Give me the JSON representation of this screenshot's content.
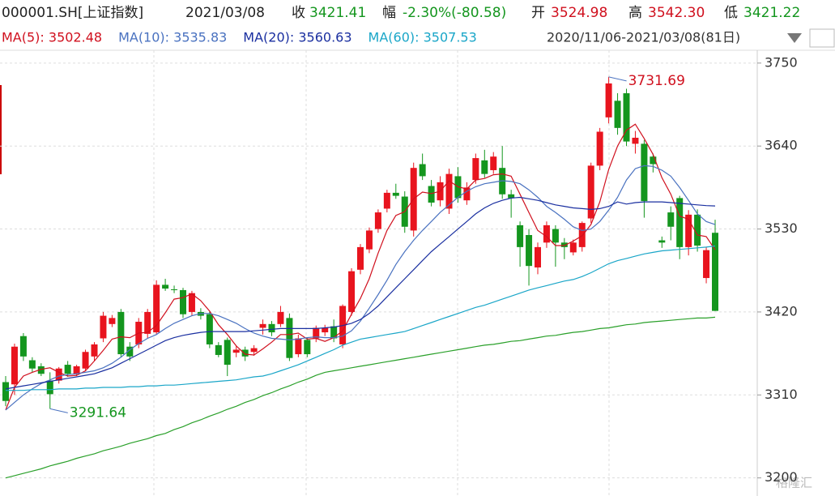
{
  "header": {
    "symbol": "000001.SH[上证指数]",
    "date": "2021/03/08",
    "close_label": "收",
    "close": "3421.41",
    "change_label": "幅",
    "change": "-2.30%(-80.58)",
    "open_label": "开",
    "open": "3524.98",
    "high_label": "高",
    "high": "3542.30",
    "low_label": "低",
    "low": "3421.22",
    "range": "2020/11/06-2021/03/08(81日)",
    "watermark": "格隆汇"
  },
  "chart_data": {
    "type": "candlestick",
    "up_color": "#e8141e",
    "down_color": "#14961e",
    "ylim": [
      3176,
      3767
    ],
    "yticks": [
      3750,
      3640,
      3530,
      3420,
      3310,
      3200
    ],
    "grid": true,
    "annotations": [
      3731.69,
      3291.64
    ],
    "ohlc": [
      [
        3327,
        3335,
        3295,
        3302
      ],
      [
        3324,
        3378,
        3310,
        3374
      ],
      [
        3388,
        3392,
        3355,
        3361
      ],
      [
        3356,
        3360,
        3340,
        3345
      ],
      [
        3348,
        3352,
        3335,
        3338
      ],
      [
        3329,
        3340,
        3291.64,
        3311
      ],
      [
        3329,
        3347,
        3325,
        3345
      ],
      [
        3350,
        3355,
        3334,
        3338
      ],
      [
        3338,
        3350,
        3335,
        3348
      ],
      [
        3345,
        3370,
        3342,
        3367
      ],
      [
        3361,
        3380,
        3355,
        3377
      ],
      [
        3385,
        3420,
        3380,
        3415
      ],
      [
        3404,
        3416,
        3400,
        3412
      ],
      [
        3420,
        3424,
        3360,
        3364
      ],
      [
        3374,
        3380,
        3355,
        3361
      ],
      [
        3377,
        3412,
        3372,
        3407
      ],
      [
        3391,
        3424,
        3385,
        3420
      ],
      [
        3393,
        3462,
        3390,
        3456
      ],
      [
        3456,
        3464,
        3448,
        3451
      ],
      [
        3450,
        3455,
        3445,
        3449
      ],
      [
        3449,
        3452,
        3412,
        3417
      ],
      [
        3420,
        3448,
        3415,
        3445
      ],
      [
        3420,
        3425,
        3410,
        3415
      ],
      [
        3417,
        3420,
        3372,
        3377
      ],
      [
        3376,
        3380,
        3360,
        3363
      ],
      [
        3383,
        3386,
        3335,
        3350
      ],
      [
        3366,
        3375,
        3360,
        3370
      ],
      [
        3370,
        3374,
        3355,
        3361
      ],
      [
        3367,
        3376,
        3362,
        3372
      ],
      [
        3399,
        3410,
        3390,
        3404
      ],
      [
        3404,
        3408,
        3388,
        3393
      ],
      [
        3404,
        3428,
        3400,
        3420
      ],
      [
        3412,
        3418,
        3355,
        3359
      ],
      [
        3364,
        3390,
        3360,
        3385
      ],
      [
        3383,
        3386,
        3360,
        3364
      ],
      [
        3385,
        3402,
        3380,
        3399
      ],
      [
        3393,
        3403,
        3388,
        3399
      ],
      [
        3401,
        3410,
        3380,
        3385
      ],
      [
        3377,
        3430,
        3372,
        3428
      ],
      [
        3420,
        3478,
        3415,
        3474
      ],
      [
        3476,
        3510,
        3470,
        3506
      ],
      [
        3503,
        3532,
        3498,
        3528
      ],
      [
        3530,
        3556,
        3525,
        3552
      ],
      [
        3557,
        3582,
        3552,
        3578
      ],
      [
        3578,
        3590,
        3570,
        3574
      ],
      [
        3573,
        3580,
        3525,
        3533
      ],
      [
        3528,
        3618,
        3520,
        3611
      ],
      [
        3616,
        3630,
        3595,
        3600
      ],
      [
        3587,
        3595,
        3560,
        3565
      ],
      [
        3568,
        3600,
        3560,
        3592
      ],
      [
        3557,
        3610,
        3550,
        3603
      ],
      [
        3600,
        3612,
        3565,
        3571
      ],
      [
        3568,
        3592,
        3562,
        3585
      ],
      [
        3595,
        3630,
        3590,
        3624
      ],
      [
        3621,
        3635,
        3598,
        3603
      ],
      [
        3608,
        3632,
        3603,
        3626
      ],
      [
        3611,
        3640,
        3570,
        3576
      ],
      [
        3576,
        3582,
        3545,
        3571
      ],
      [
        3535,
        3540,
        3480,
        3506
      ],
      [
        3522,
        3530,
        3455,
        3481
      ],
      [
        3479,
        3512,
        3470,
        3506
      ],
      [
        3512,
        3540,
        3505,
        3535
      ],
      [
        3530,
        3535,
        3480,
        3512
      ],
      [
        3512,
        3518,
        3490,
        3506
      ],
      [
        3499,
        3516,
        3495,
        3512
      ],
      [
        3506,
        3540,
        3500,
        3538
      ],
      [
        3544,
        3618,
        3538,
        3614
      ],
      [
        3614,
        3664,
        3608,
        3659
      ],
      [
        3678,
        3731.69,
        3670,
        3723
      ],
      [
        3700,
        3710,
        3655,
        3664
      ],
      [
        3710,
        3716,
        3640,
        3646
      ],
      [
        3643,
        3660,
        3630,
        3651
      ],
      [
        3643,
        3648,
        3545,
        3567
      ],
      [
        3626,
        3630,
        3605,
        3616
      ],
      [
        3515,
        3520,
        3505,
        3512
      ],
      [
        3552,
        3560,
        3515,
        3533
      ],
      [
        3571,
        3574,
        3490,
        3506
      ],
      [
        3506,
        3555,
        3495,
        3549
      ],
      [
        3549,
        3556,
        3500,
        3508
      ],
      [
        3465,
        3506,
        3458,
        3501.99
      ],
      [
        3524.98,
        3542.3,
        3421.22,
        3421.41
      ]
    ],
    "series": [
      {
        "name": "MA(5): 3502.48",
        "color": "#d0101e",
        "values": [
          3290,
          3320,
          3335,
          3340,
          3344,
          3346,
          3340,
          3335,
          3336,
          3342,
          3355,
          3369,
          3384,
          3387,
          3386,
          3392,
          3393,
          3402,
          3419,
          3437,
          3439,
          3444,
          3435,
          3421,
          3403,
          3390,
          3375,
          3364,
          3363,
          3371,
          3380,
          3390,
          3390,
          3392,
          3384,
          3385,
          3381,
          3386,
          3395,
          3417,
          3438,
          3464,
          3498,
          3528,
          3548,
          3553,
          3570,
          3579,
          3577,
          3580,
          3594,
          3586,
          3583,
          3595,
          3597,
          3602,
          3603,
          3600,
          3576,
          3552,
          3528,
          3520,
          3508,
          3508,
          3514,
          3521,
          3536,
          3566,
          3609,
          3640,
          3661,
          3669,
          3650,
          3629,
          3598,
          3576,
          3547,
          3543,
          3522,
          3520,
          3502.48
        ]
      },
      {
        "name": "MA(10): 3535.83",
        "color": "#4a72c0",
        "values": [
          3290,
          3300,
          3310,
          3318,
          3325,
          3330,
          3335,
          3337,
          3338,
          3340,
          3342,
          3346,
          3352,
          3360,
          3370,
          3378,
          3385,
          3390,
          3398,
          3405,
          3410,
          3415,
          3418,
          3418,
          3415,
          3410,
          3405,
          3398,
          3392,
          3388,
          3385,
          3384,
          3383,
          3384,
          3386,
          3387,
          3386,
          3386,
          3388,
          3395,
          3408,
          3425,
          3443,
          3462,
          3483,
          3500,
          3515,
          3528,
          3540,
          3552,
          3562,
          3572,
          3580,
          3586,
          3590,
          3592,
          3594,
          3593,
          3590,
          3582,
          3572,
          3560,
          3552,
          3543,
          3533,
          3528,
          3530,
          3540,
          3555,
          3572,
          3595,
          3610,
          3614,
          3613,
          3608,
          3600,
          3585,
          3568,
          3550,
          3540,
          3535.83
        ]
      },
      {
        "name": "MA(20): 3560.63",
        "color": "#1a2fa0",
        "values": [
          3318,
          3320,
          3322,
          3324,
          3326,
          3328,
          3330,
          3332,
          3334,
          3336,
          3338,
          3342,
          3346,
          3352,
          3358,
          3364,
          3370,
          3376,
          3382,
          3386,
          3389,
          3391,
          3393,
          3394,
          3394,
          3394,
          3394,
          3394,
          3395,
          3396,
          3397,
          3398,
          3398,
          3398,
          3398,
          3398,
          3399,
          3400,
          3402,
          3405,
          3410,
          3418,
          3428,
          3440,
          3452,
          3464,
          3476,
          3488,
          3500,
          3510,
          3520,
          3530,
          3540,
          3550,
          3558,
          3564,
          3568,
          3571,
          3572,
          3570,
          3568,
          3565,
          3562,
          3560,
          3558,
          3557,
          3556,
          3557,
          3560,
          3566,
          3563,
          3565,
          3566,
          3566,
          3566,
          3565,
          3564,
          3563,
          3562,
          3561,
          3560.63
        ]
      },
      {
        "name": "MA(60): 3507.53",
        "color": "#1aa6c8",
        "values": [
          3316,
          3316,
          3316,
          3317,
          3317,
          3317,
          3318,
          3318,
          3318,
          3319,
          3319,
          3320,
          3320,
          3320,
          3321,
          3321,
          3322,
          3322,
          3323,
          3323,
          3324,
          3325,
          3326,
          3327,
          3328,
          3329,
          3330,
          3332,
          3334,
          3335,
          3338,
          3342,
          3346,
          3350,
          3355,
          3360,
          3365,
          3370,
          3376,
          3380,
          3384,
          3386,
          3388,
          3390,
          3392,
          3394,
          3398,
          3402,
          3406,
          3410,
          3414,
          3418,
          3422,
          3426,
          3429,
          3433,
          3437,
          3441,
          3445,
          3449,
          3452,
          3455,
          3458,
          3461,
          3463,
          3467,
          3472,
          3478,
          3484,
          3488,
          3491,
          3494,
          3497,
          3499,
          3501,
          3502,
          3503,
          3504,
          3505,
          3506,
          3507.53
        ]
      },
      {
        "color": "#2aa02a",
        "values": [
          3200,
          3203,
          3206,
          3209,
          3212,
          3216,
          3219,
          3222,
          3226,
          3229,
          3232,
          3236,
          3239,
          3242,
          3246,
          3249,
          3252,
          3256,
          3259,
          3264,
          3268,
          3273,
          3277,
          3282,
          3286,
          3291,
          3295,
          3300,
          3304,
          3309,
          3313,
          3318,
          3322,
          3327,
          3331,
          3336,
          3340,
          3342,
          3344,
          3346,
          3348,
          3350,
          3352,
          3354,
          3356,
          3358,
          3360,
          3362,
          3364,
          3366,
          3368,
          3370,
          3372,
          3374,
          3376,
          3377,
          3379,
          3381,
          3382,
          3384,
          3386,
          3388,
          3389,
          3391,
          3393,
          3394,
          3396,
          3398,
          3399,
          3401,
          3403,
          3404,
          3406,
          3407,
          3408,
          3409,
          3410,
          3411,
          3412,
          3412,
          3413
        ]
      }
    ]
  }
}
